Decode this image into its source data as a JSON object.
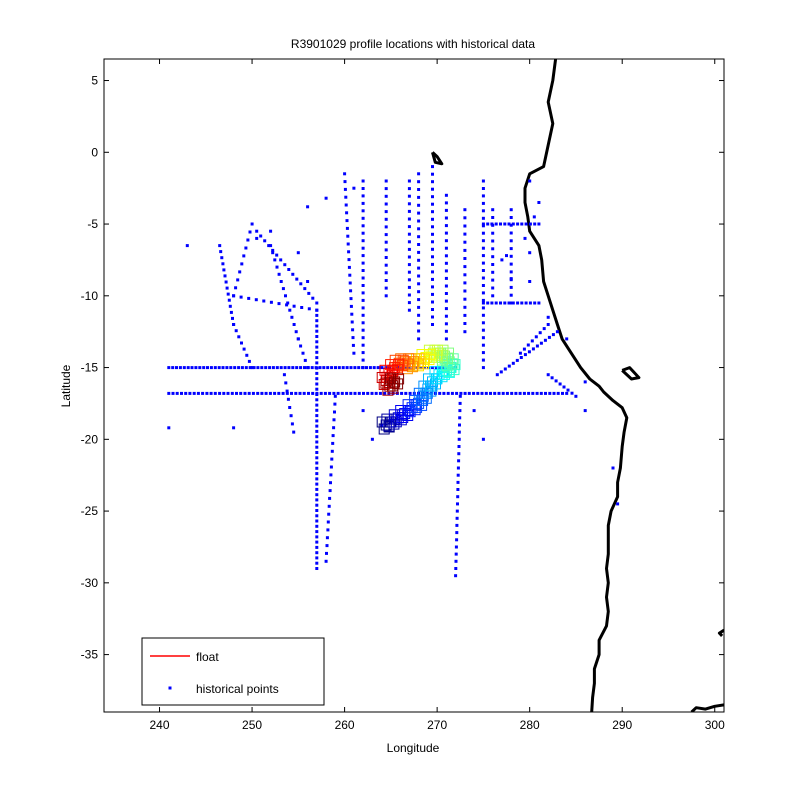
{
  "chart_data": {
    "type": "scatter",
    "title": "R3901029 profile locations with historical data",
    "xlabel": "Longitude",
    "ylabel": "Latitude",
    "xlim": [
      234,
      301
    ],
    "ylim": [
      -39,
      6.5
    ],
    "xticks": [
      240,
      250,
      260,
      270,
      280,
      290,
      300
    ],
    "yticks": [
      5,
      0,
      -5,
      -10,
      -15,
      -20,
      -25,
      -30,
      -35
    ],
    "xtick_labels": [
      "240",
      "250",
      "260",
      "270",
      "280",
      "290",
      "300"
    ],
    "ytick_labels": [
      "5",
      "0",
      "-5",
      "-10",
      "-15",
      "-20",
      "-25",
      "-30",
      "-35"
    ],
    "grid": false,
    "legend": {
      "location": "bottom-left",
      "entries": [
        {
          "label": "float",
          "color": "#ff0000",
          "marker": "line"
        },
        {
          "label": "historical points",
          "color": "#0000ff",
          "marker": "dot"
        }
      ]
    },
    "series": [
      {
        "name": "historical points",
        "color": "#0000ff",
        "tracks": [
          {
            "lon": [
              241,
              272
            ],
            "lat": [
              -15,
              -15
            ],
            "n": 75
          },
          {
            "lon": [
              241,
              284
            ],
            "lat": [
              -16.8,
              -16.8
            ],
            "n": 95
          },
          {
            "lon": [
              257,
              257
            ],
            "lat": [
              -11,
              -29
            ],
            "n": 50
          },
          {
            "lon": [
              248,
              257
            ],
            "lat": [
              -10,
              -11
            ],
            "n": 12
          },
          {
            "lon": [
              250,
              248
            ],
            "lat": [
              -5,
              -10
            ],
            "n": 10
          },
          {
            "lon": [
              250.5,
              257
            ],
            "lat": [
              -5.5,
              -10.5
            ],
            "n": 16
          },
          {
            "lon": [
              246.5,
              248
            ],
            "lat": [
              -6.5,
              -12
            ],
            "n": 14
          },
          {
            "lon": [
              248,
              250
            ],
            "lat": [
              -12,
              -15
            ],
            "n": 8
          },
          {
            "lon": [
              252,
              255
            ],
            "lat": [
              -6.5,
              -13
            ],
            "n": 14
          },
          {
            "lon": [
              255,
              256
            ],
            "lat": [
              -13,
              -15
            ],
            "n": 5
          },
          {
            "lon": [
              262,
              262
            ],
            "lat": [
              -2,
              -15
            ],
            "n": 26
          },
          {
            "lon": [
              264.5,
              264.5
            ],
            "lat": [
              -2,
              -10
            ],
            "n": 16
          },
          {
            "lon": [
              267,
              267
            ],
            "lat": [
              -2,
              -11
            ],
            "n": 18
          },
          {
            "lon": [
              271,
              271
            ],
            "lat": [
              -3,
              -13
            ],
            "n": 20
          },
          {
            "lon": [
              273,
              273
            ],
            "lat": [
              -4,
              -12.5
            ],
            "n": 16
          },
          {
            "lon": [
              275,
              275
            ],
            "lat": [
              -2,
              -15
            ],
            "n": 26
          },
          {
            "lon": [
              276,
              276
            ],
            "lat": [
              -4,
              -10
            ],
            "n": 12
          },
          {
            "lon": [
              278,
              278
            ],
            "lat": [
              -4,
              -10.5
            ],
            "n": 13
          },
          {
            "lon": [
              275,
              281
            ],
            "lat": [
              -5,
              -5
            ],
            "n": 14
          },
          {
            "lon": [
              275,
              281
            ],
            "lat": [
              -10.5,
              -10.5
            ],
            "n": 14
          },
          {
            "lon": [
              272.5,
              272
            ],
            "lat": [
              -17,
              -29.5
            ],
            "n": 26
          },
          {
            "lon": [
              269.5,
              269.5
            ],
            "lat": [
              -1,
              -12
            ],
            "n": 22
          },
          {
            "lon": [
              268,
              268
            ],
            "lat": [
              -1.5,
              -13
            ],
            "n": 22
          },
          {
            "lon": [
              260,
              261
            ],
            "lat": [
              -1.5,
              -14
            ],
            "n": 24
          },
          {
            "lon": [
              253.5,
              254.5
            ],
            "lat": [
              -15.5,
              -19.5
            ],
            "n": 8
          },
          {
            "lon": [
              259,
              258
            ],
            "lat": [
              -17,
              -28.5
            ],
            "n": 22
          },
          {
            "lon": [
              276.5,
              283
            ],
            "lat": [
              -15.5,
              -12.5
            ],
            "n": 16
          },
          {
            "lon": [
              279,
              282
            ],
            "lat": [
              -14,
              -12
            ],
            "n": 8
          },
          {
            "lon": [
              282,
              285
            ],
            "lat": [
              -15.5,
              -17
            ],
            "n": 8
          }
        ],
        "points": [
          [
            241,
            -19.2
          ],
          [
            248,
            -19.2
          ],
          [
            252,
            -5.5
          ],
          [
            250.5,
            -6
          ],
          [
            243,
            -6.5
          ],
          [
            255,
            -7
          ],
          [
            256,
            -9
          ],
          [
            258,
            -3.2
          ],
          [
            256,
            -3.8
          ],
          [
            261,
            -2.5
          ],
          [
            262,
            -18
          ],
          [
            264,
            -19
          ],
          [
            263,
            -20
          ],
          [
            275,
            -20
          ],
          [
            274,
            -18
          ],
          [
            286,
            -16
          ],
          [
            286,
            -18
          ],
          [
            289,
            -22
          ],
          [
            289.5,
            -24.5
          ],
          [
            284,
            -13
          ],
          [
            280,
            -9
          ],
          [
            280,
            -7
          ],
          [
            281,
            -3.5
          ],
          [
            280,
            -2
          ],
          [
            277,
            -7.5
          ],
          [
            280.5,
            -4.5
          ],
          [
            279.5,
            -6
          ],
          [
            278,
            -8.8
          ],
          [
            277.5,
            -7.2
          ],
          [
            282,
            -11.5
          ]
        ]
      },
      {
        "name": "float",
        "colormap": "jet",
        "path": [
          [
            264.5,
            -19.0
          ],
          [
            265.0,
            -18.8
          ],
          [
            265.8,
            -18.5
          ],
          [
            266.5,
            -18.2
          ],
          [
            267.3,
            -17.8
          ],
          [
            268.0,
            -17.5
          ],
          [
            268.5,
            -17.0
          ],
          [
            269.0,
            -16.5
          ],
          [
            269.5,
            -16.0
          ],
          [
            270.2,
            -15.5
          ],
          [
            271.0,
            -15.2
          ],
          [
            271.5,
            -15.0
          ],
          [
            271.3,
            -14.6
          ],
          [
            270.8,
            -14.2
          ],
          [
            270.2,
            -14.0
          ],
          [
            269.6,
            -14.0
          ],
          [
            268.8,
            -14.3
          ],
          [
            268.2,
            -14.6
          ],
          [
            267.6,
            -14.6
          ],
          [
            267.0,
            -14.8
          ],
          [
            266.5,
            -14.6
          ],
          [
            265.9,
            -14.7
          ],
          [
            265.4,
            -15.0
          ],
          [
            264.8,
            -15.4
          ],
          [
            264.5,
            -15.9
          ],
          [
            264.9,
            -16.3
          ],
          [
            265.4,
            -16.0
          ]
        ]
      }
    ],
    "coastline": [
      [
        [
          282.8,
          6.5
        ],
        [
          282.5,
          5
        ],
        [
          282,
          3.5
        ],
        [
          282.5,
          2
        ],
        [
          282,
          0.5
        ],
        [
          281.5,
          -1
        ],
        [
          280,
          -1.5
        ],
        [
          279.5,
          -2.5
        ],
        [
          279.5,
          -3.5
        ],
        [
          279.8,
          -4.5
        ],
        [
          280,
          -5.5
        ],
        [
          281,
          -6.5
        ],
        [
          281.3,
          -7.5
        ],
        [
          281.5,
          -9
        ],
        [
          282,
          -10
        ],
        [
          282.5,
          -11
        ],
        [
          283,
          -12
        ],
        [
          283.5,
          -13
        ],
        [
          284.5,
          -14
        ],
        [
          285.5,
          -15
        ],
        [
          286.5,
          -15.8
        ],
        [
          287.5,
          -16.3
        ],
        [
          288,
          -16.7
        ],
        [
          289,
          -17.3
        ],
        [
          290,
          -17.8
        ],
        [
          290.5,
          -18.5
        ],
        [
          290.2,
          -19.5
        ],
        [
          290,
          -20.5
        ],
        [
          289.8,
          -22
        ],
        [
          289.5,
          -23
        ],
        [
          289.5,
          -24
        ],
        [
          288.8,
          -25
        ],
        [
          288.5,
          -26
        ],
        [
          288.5,
          -27
        ],
        [
          288.5,
          -28
        ],
        [
          288.3,
          -29
        ],
        [
          288.5,
          -30
        ],
        [
          288.3,
          -31
        ],
        [
          288.5,
          -32
        ],
        [
          288.3,
          -33
        ],
        [
          287.5,
          -34
        ],
        [
          287.5,
          -35
        ],
        [
          287,
          -36
        ],
        [
          287,
          -37
        ],
        [
          286.8,
          -38
        ],
        [
          286.7,
          -39
        ]
      ],
      [
        [
          301,
          -33.3
        ],
        [
          300.5,
          -33.5
        ],
        [
          300.8,
          -33.7
        ]
      ],
      [
        [
          297.5,
          -39
        ],
        [
          298,
          -38.7
        ],
        [
          299,
          -38.8
        ],
        [
          300,
          -38.6
        ],
        [
          301,
          -38.5
        ]
      ],
      [
        [
          290,
          -15.2
        ],
        [
          290.8,
          -15.0
        ],
        [
          291.8,
          -15.7
        ],
        [
          291.0,
          -15.8
        ],
        [
          290,
          -15.2
        ]
      ],
      [
        [
          269.5,
          0
        ],
        [
          270,
          -0.3
        ],
        [
          270.5,
          -0.8
        ],
        [
          269.8,
          -0.7
        ],
        [
          269.5,
          0
        ]
      ]
    ]
  }
}
